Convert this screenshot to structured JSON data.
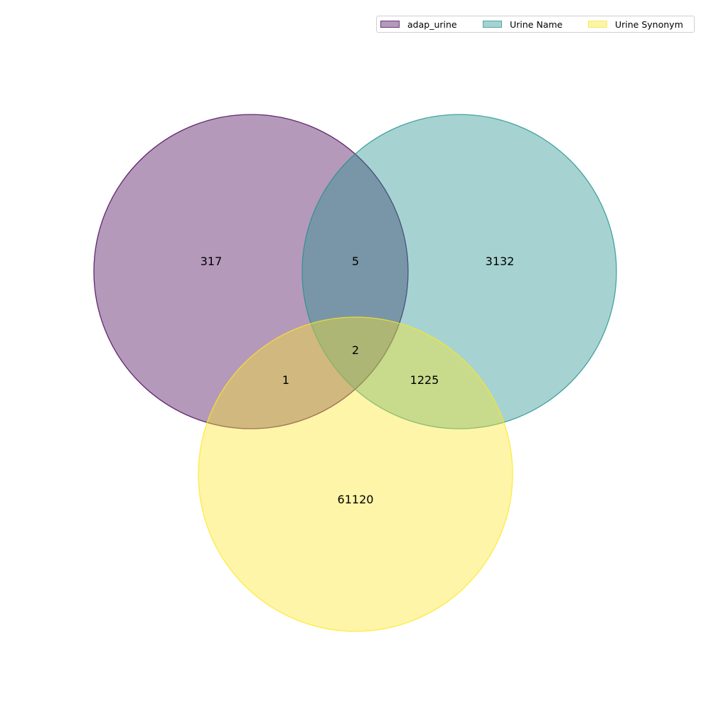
{
  "legend": {
    "placement": "top-right",
    "items": [
      {
        "label": "adap_urine",
        "fill": "#b399bb",
        "edge": "#6a3a7a"
      },
      {
        "label": "Urine Name",
        "fill": "#a6d3d2",
        "edge": "#4fa7a3"
      },
      {
        "label": "Urine Synonym",
        "fill": "#fdf5a4",
        "edge": "#f5e86a"
      }
    ]
  },
  "sets": [
    {
      "name": "adap_urine",
      "fill": "#440154",
      "edge": "#440154",
      "alpha": 0.4
    },
    {
      "name": "Urine Name",
      "fill": "#21918c",
      "edge": "#21918c",
      "alpha": 0.4
    },
    {
      "name": "Urine Synonym",
      "fill": "#fde725",
      "edge": "#fde725",
      "alpha": 0.4
    }
  ],
  "regions": {
    "only_a": "317",
    "a_b": "5",
    "only_b": "3132",
    "a_b_c": "2",
    "a_c": "1",
    "b_c": "1225",
    "only_c": "61120"
  }
}
